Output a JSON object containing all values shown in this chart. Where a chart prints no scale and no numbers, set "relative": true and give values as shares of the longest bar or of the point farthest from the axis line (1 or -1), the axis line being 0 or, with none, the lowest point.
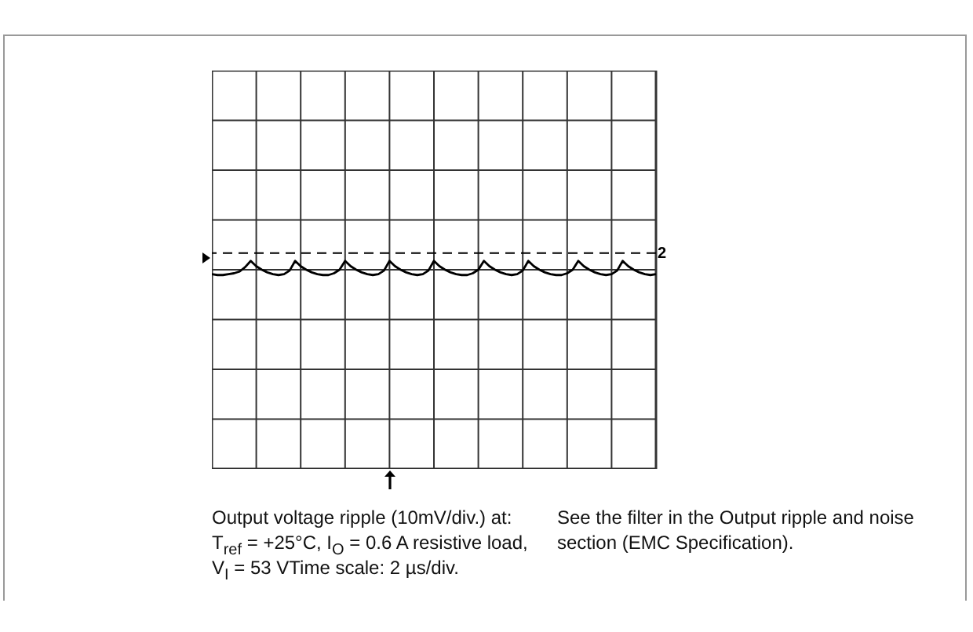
{
  "chart_data": {
    "type": "line",
    "relative": true,
    "grid": true,
    "tick_labels": false,
    "marker": "none",
    "line_style": "solid",
    "categories": [
      null,
      null,
      null,
      null,
      null,
      null,
      null,
      null,
      null,
      null,
      null,
      null,
      null,
      null,
      null,
      null,
      null,
      null,
      null,
      null,
      null,
      null,
      null,
      null,
      null,
      null,
      null,
      null,
      null,
      null,
      null,
      null,
      null,
      null,
      null,
      null,
      null,
      null,
      null,
      null,
      null,
      null,
      null,
      null,
      null,
      null,
      null,
      null,
      null,
      null,
      null,
      null,
      null,
      null,
      null,
      null,
      null,
      null,
      null,
      null,
      null,
      null,
      null,
      null,
      null,
      null,
      null,
      null,
      null,
      null,
      null,
      null,
      null,
      null,
      null,
      null,
      null,
      null,
      null,
      null,
      null
    ],
    "series": [
      {
        "color": "#000000",
        "values": [
          -0.5,
          -0.6,
          -0.6,
          -0.5,
          -0.4,
          -0.2,
          0.3,
          1,
          0.4,
          0,
          -0.3,
          -0.5,
          -0.6,
          -0.5,
          -0.1,
          1,
          0.4,
          0,
          -0.3,
          -0.5,
          -0.6,
          -0.6,
          -0.4,
          0,
          1,
          0.4,
          0,
          -0.3,
          -0.5,
          -0.6,
          -0.5,
          -0.1,
          1,
          0.4,
          0,
          -0.3,
          -0.5,
          -0.6,
          -0.5,
          -0.1,
          1,
          0.4,
          0,
          -0.3,
          -0.5,
          -0.6,
          -0.6,
          -0.4,
          0,
          1,
          0.4,
          0,
          -0.3,
          -0.5,
          -0.6,
          -0.5,
          -0.1,
          1,
          0.4,
          0,
          -0.3,
          -0.5,
          -0.6,
          -0.6,
          -0.4,
          0,
          1,
          0.4,
          0,
          -0.3,
          -0.5,
          -0.6,
          -0.5,
          -0.1,
          1,
          0.4,
          0,
          -0.3,
          -0.5,
          -0.6,
          -0.5
        ]
      }
    ],
    "ref_lines": [
      {
        "axis": "y",
        "value": 1.9,
        "label": "2",
        "line_style": "dashed",
        "color": "#000000"
      }
    ],
    "annotations": [
      "Output voltage ripple (10mV/div.) at: T$_{ref}$ = +25°C, I$_{O}$ = 0.6 A resistive load, V$_{I}$ = 53 VTime scale: 2 µs/div.",
      "See the filter in the Output ripple and noise section (EMC Specification)."
    ]
  }
}
